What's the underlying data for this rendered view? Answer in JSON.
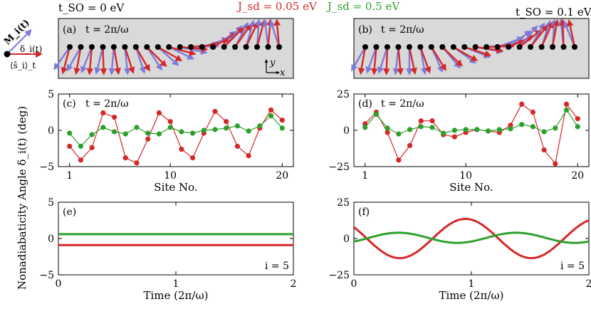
{
  "headers": {
    "tso_left": "t_SO = 0 eV",
    "tso_right": "t_SO = 0.1 eV",
    "jsd_red": "J_sd = 0.05 eV",
    "jsd_green": "J_sd = 0.5 eV"
  },
  "colors": {
    "red": "#d62728",
    "green": "#2ca02c",
    "blue": "#7b7bdc",
    "panel_bg": "#d9d9d9"
  },
  "inset": {
    "m_label": "M_i(t)",
    "delta_label": "δ_i(t)",
    "s_label": "⟨ŝ_i⟩_t"
  },
  "shared": {
    "ylabel": "Nonadiabaticity Angle δ_i(t) (deg)",
    "axis_x_label": "x",
    "axis_y_label": "y"
  },
  "chart_data": [
    {
      "id": "a",
      "type": "spin-chain",
      "label": "(a)",
      "title": "t = 2π/ω",
      "sites": 20,
      "red_angles_deg": [
        -105,
        -100,
        -95,
        -88,
        -80,
        -72,
        -60,
        -45,
        -30,
        -15,
        -5,
        5,
        15,
        30,
        45,
        55,
        65,
        75,
        85,
        95
      ],
      "blue_angles_deg": [
        -125,
        -120,
        -112,
        -104,
        -95,
        -84,
        -72,
        -57,
        -42,
        -26,
        -12,
        2,
        18,
        34,
        50,
        62,
        74,
        86,
        97,
        108
      ]
    },
    {
      "id": "b",
      "type": "spin-chain",
      "label": "(b)",
      "title": "t = 2π/ω",
      "sites": 20,
      "red_angles_deg": [
        -100,
        -95,
        -92,
        -85,
        -78,
        -70,
        -58,
        -44,
        -30,
        -18,
        -8,
        2,
        12,
        24,
        38,
        52,
        66,
        80,
        92,
        102
      ],
      "blue_angles_deg": [
        -120,
        -110,
        -108,
        -96,
        -90,
        -80,
        -66,
        -50,
        -36,
        -22,
        -10,
        4,
        20,
        36,
        50,
        60,
        72,
        86,
        96,
        112
      ]
    },
    {
      "id": "c",
      "type": "line",
      "label": "(c)",
      "title": "t = 2π/ω",
      "x": [
        1,
        2,
        3,
        4,
        5,
        6,
        7,
        8,
        9,
        10,
        11,
        12,
        13,
        14,
        15,
        16,
        17,
        18,
        19,
        20
      ],
      "series": [
        {
          "name": "J_sd = 0.05 eV",
          "color": "red",
          "values": [
            -2.2,
            -4.1,
            -2.4,
            2.4,
            1.8,
            -3.8,
            -4.5,
            -1.2,
            2.4,
            1.2,
            -2.6,
            -3.8,
            -0.4,
            2.6,
            1.2,
            -2.2,
            -3.5,
            0.3,
            2.8,
            1.4
          ]
        },
        {
          "name": "J_sd = 0.5 eV",
          "color": "green",
          "values": [
            -0.4,
            -2.2,
            -0.6,
            0.4,
            -0.2,
            -0.5,
            0.4,
            -0.4,
            -0.5,
            0.4,
            -0.2,
            -0.4,
            0.0,
            0.1,
            0.3,
            0.6,
            -0.1,
            0.6,
            2.0,
            0.3
          ]
        }
      ],
      "xticks": [
        1,
        10,
        20
      ],
      "yticks": [
        -5,
        0,
        5
      ],
      "xlim": [
        0,
        21
      ],
      "ylim": [
        -5,
        5
      ],
      "xlabel": "Site No."
    },
    {
      "id": "d",
      "type": "line",
      "label": "(d)",
      "title": "t = 2π/ω",
      "x": [
        1,
        2,
        3,
        4,
        5,
        6,
        7,
        8,
        9,
        10,
        11,
        12,
        13,
        14,
        15,
        16,
        17,
        18,
        19,
        20
      ],
      "series": [
        {
          "name": "J_sd = 0.05 eV",
          "color": "red",
          "values": [
            4.5,
            12.5,
            -1.5,
            -20.5,
            -10.5,
            6.5,
            6.5,
            -3.0,
            -4.5,
            -1.5,
            0.5,
            -0.5,
            -1.5,
            3.5,
            18.0,
            12.5,
            -13.5,
            -23.0,
            18.0,
            8.0
          ]
        },
        {
          "name": "J_sd = 0.5 eV",
          "color": "green",
          "values": [
            2.0,
            11.0,
            1.5,
            -2.5,
            0.5,
            2.5,
            2.0,
            -2.0,
            0.0,
            0.5,
            0.5,
            -0.5,
            0.5,
            1.0,
            4.0,
            2.5,
            -1.0,
            1.5,
            14.0,
            2.5
          ]
        }
      ],
      "xticks": [
        1,
        10,
        20
      ],
      "yticks": [
        -25,
        0,
        25
      ],
      "xlim": [
        0,
        21
      ],
      "ylim": [
        -25,
        25
      ],
      "xlabel": "Site No."
    },
    {
      "id": "e",
      "type": "line",
      "label": "(e)",
      "annotation": "i = 5",
      "series": [
        {
          "name": "J_sd = 0.05 eV",
          "color": "red",
          "formula": "constant",
          "value": -0.9
        },
        {
          "name": "J_sd = 0.5 eV",
          "color": "green",
          "formula": "constant",
          "value": 0.6
        }
      ],
      "xticks": [
        0,
        1,
        2
      ],
      "yticks": [
        -5,
        0,
        5
      ],
      "xlim": [
        0,
        2
      ],
      "ylim": [
        -5,
        5
      ],
      "xlabel": "Time (2π/ω)"
    },
    {
      "id": "f",
      "type": "line",
      "label": "(f)",
      "annotation": "i = 5",
      "series": [
        {
          "name": "J_sd = 0.05 eV",
          "color": "red",
          "formula": "cosine",
          "amplitude": 13.5,
          "period": 1.12,
          "phase_x": 0.95,
          "offset": 0
        },
        {
          "name": "J_sd = 0.5 eV",
          "color": "green",
          "formula": "cosine",
          "amplitude": 3.5,
          "period": 1.0,
          "phase_x": 0.38,
          "offset": 0.5
        }
      ],
      "xticks": [
        0,
        1,
        2
      ],
      "yticks": [
        -25,
        0,
        25
      ],
      "xlim": [
        0,
        2
      ],
      "ylim": [
        -25,
        25
      ],
      "xlabel": "Time (2π/ω)"
    }
  ]
}
